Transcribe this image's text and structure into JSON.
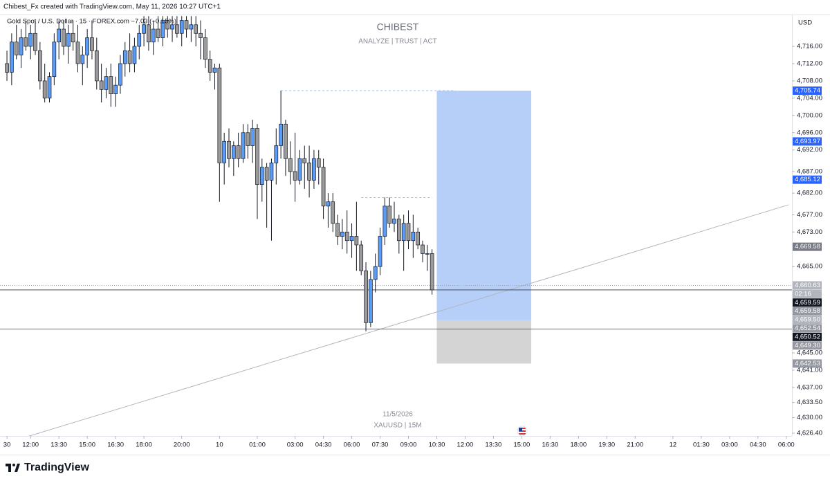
{
  "header": {
    "credit": "Chibest_Fx created with TradingView.com, May 11, 2026 10:27 UTC+1",
    "symbol_line": "Gold Spot / U.S. Dollar · 15 · FOREX.com  −7.03 (−0.15%)"
  },
  "footer": {
    "brand": "TradingView"
  },
  "chart_data": {
    "type": "candlestick",
    "watermark_title": "CHIBEST",
    "watermark_subtitle": "ANALYZE | TRUST | ACT",
    "watermark_date": "11/5/2026",
    "watermark_symbol": "XAUUSD | 15M",
    "y_unit": "USD",
    "grid": false,
    "up_color": "#5b9cf6",
    "down_color": "#9b9b9b",
    "outline_color": "#131722",
    "open": [
      4712,
      4710,
      4717,
      4714,
      4718,
      4716,
      4719,
      4715,
      4708,
      4704,
      4709,
      4717,
      4720,
      4716,
      4719,
      4717,
      4712,
      4714,
      4718,
      4715,
      4708,
      4706,
      4709,
      4705,
      4707,
      4712,
      4715,
      4712,
      4716,
      4719,
      4721,
      4717,
      4720,
      4718,
      4722,
      4720,
      4721,
      4719,
      4722,
      4720,
      4721,
      4719,
      4718,
      4713,
      4710,
      4711,
      4689,
      4694,
      4690,
      4693,
      4690,
      4696,
      4693,
      4697,
      4684,
      4688,
      4685,
      4689,
      4693,
      4698,
      4690,
      4687,
      4685,
      4690,
      4689,
      4685,
      4690,
      4688,
      4679,
      4680,
      4675,
      4672,
      4673,
      4671,
      4672,
      4670,
      4664,
      4652,
      4662,
      4665,
      4672,
      4679,
      4675,
      4676,
      4671,
      4675,
      4671,
      4673,
      4670,
      4668,
      4668
    ],
    "high": [
      4715,
      4719,
      4721,
      4720,
      4722,
      4721,
      4722,
      4717,
      4712,
      4710,
      4719,
      4722,
      4722,
      4721,
      4722,
      4721,
      4716,
      4720,
      4722,
      4718,
      4712,
      4711,
      4712,
      4709,
      4714,
      4717,
      4719,
      4718,
      4721,
      4723,
      4723,
      4722,
      4723,
      4723,
      4723,
      4723,
      4723,
      4723,
      4723,
      4723,
      4723,
      4722,
      4720,
      4715,
      4712,
      4712,
      4696,
      4697,
      4694,
      4696,
      4698,
      4698,
      4699,
      4698,
      4690,
      4689,
      4690,
      4697,
      4705.74,
      4699,
      4694,
      4696,
      4692,
      4693,
      4693,
      4692,
      4692,
      4690,
      4682,
      4682,
      4677,
      4676,
      4678,
      4675,
      4680,
      4671,
      4666,
      4664,
      4668,
      4674,
      4681,
      4681,
      4680,
      4677,
      4677,
      4678,
      4677,
      4674,
      4671,
      4670,
      4669
    ],
    "low": [
      4708,
      4707,
      4713,
      4711,
      4715,
      4713,
      4714,
      4706,
      4703,
      4703,
      4707,
      4713,
      4714,
      4712,
      4715,
      4710,
      4707,
      4711,
      4713,
      4706,
      4703,
      4704,
      4702,
      4702,
      4705,
      4709,
      4710,
      4710,
      4713,
      4716,
      4715,
      4714,
      4717,
      4716,
      4718,
      4717,
      4718,
      4716,
      4718,
      4717,
      4716,
      4713,
      4711,
      4708,
      4706,
      4680,
      4684,
      4688,
      4686,
      4688,
      4689,
      4690,
      4689,
      4676,
      4680,
      4674,
      4671,
      4684,
      4690,
      4686,
      4684,
      4680,
      4684,
      4683,
      4681,
      4683,
      4684,
      4676,
      4674,
      4673,
      4670,
      4669,
      4668,
      4667,
      4664,
      4663,
      4650,
      4651,
      4659,
      4663,
      4670,
      4674,
      4673,
      4668,
      4664,
      4669,
      4667,
      4669,
      4666,
      4664,
      4658.5
    ],
    "close": [
      4710,
      4717,
      4714,
      4718,
      4716,
      4719,
      4715,
      4708,
      4704,
      4709,
      4717,
      4720,
      4716,
      4719,
      4717,
      4712,
      4714,
      4718,
      4715,
      4708,
      4706,
      4709,
      4705,
      4707,
      4712,
      4715,
      4712,
      4716,
      4719,
      4721,
      4717,
      4720,
      4718,
      4722,
      4720,
      4721,
      4719,
      4722,
      4720,
      4721,
      4719,
      4718,
      4713,
      4710,
      4711,
      4689,
      4694,
      4690,
      4693,
      4690,
      4696,
      4693,
      4697,
      4684,
      4688,
      4685,
      4689,
      4693,
      4698,
      4690,
      4687,
      4685,
      4690,
      4689,
      4685,
      4690,
      4688,
      4679,
      4680,
      4675,
      4672,
      4673,
      4671,
      4672,
      4670,
      4664,
      4652,
      4662,
      4665,
      4672,
      4679,
      4675,
      4676,
      4671,
      4675,
      4671,
      4673,
      4670,
      4668,
      4668,
      4659.59
    ],
    "xlim": [
      -0.3,
      166.2
    ],
    "xticks": [
      {
        "value": 0,
        "label": "30"
      },
      {
        "value": 5,
        "label": "12:00"
      },
      {
        "value": 11,
        "label": "13:30"
      },
      {
        "value": 17,
        "label": "15:00"
      },
      {
        "value": 23,
        "label": "16:30"
      },
      {
        "value": 29,
        "label": "18:00"
      },
      {
        "value": 37,
        "label": "20:00"
      },
      {
        "value": 45,
        "label": "10"
      },
      {
        "value": 53,
        "label": "01:00"
      },
      {
        "value": 61,
        "label": "03:00"
      },
      {
        "value": 67,
        "label": "04:30"
      },
      {
        "value": 73,
        "label": "06:00"
      },
      {
        "value": 79,
        "label": "07:30"
      },
      {
        "value": 85,
        "label": "09:00"
      },
      {
        "value": 91,
        "label": "10:30"
      },
      {
        "value": 97,
        "label": "12:00"
      },
      {
        "value": 103,
        "label": "13:30"
      },
      {
        "value": 109,
        "label": "15:00"
      },
      {
        "value": 115,
        "label": "16:30"
      },
      {
        "value": 121,
        "label": "18:00"
      },
      {
        "value": 127,
        "label": "19:30"
      },
      {
        "value": 133,
        "label": "21:00"
      },
      {
        "value": 141,
        "label": "12"
      },
      {
        "value": 147,
        "label": "01:30"
      },
      {
        "value": 153,
        "label": "03:00"
      },
      {
        "value": 159,
        "label": "04:30"
      },
      {
        "value": 165,
        "label": "06:00"
      }
    ],
    "ylim": [
      4625.76,
      4723.21
    ],
    "yticks": [
      {
        "value": 4716,
        "label": "4,716.00"
      },
      {
        "value": 4712,
        "label": "4,712.00"
      },
      {
        "value": 4708,
        "label": "4,708.00"
      },
      {
        "value": 4704,
        "label": "4,704.00"
      },
      {
        "value": 4700,
        "label": "4,700.00"
      },
      {
        "value": 4696,
        "label": "4,696.00"
      },
      {
        "value": 4692,
        "label": "4,692.00"
      },
      {
        "value": 4687,
        "label": "4,687.00"
      },
      {
        "value": 4682,
        "label": "4,682.00"
      },
      {
        "value": 4677,
        "label": "4,677.00"
      },
      {
        "value": 4673,
        "label": "4,673.00"
      },
      {
        "value": 4665,
        "label": "4,665.00"
      },
      {
        "value": 4645,
        "label": "4,645.00"
      },
      {
        "value": 4641,
        "label": "4,641.00"
      },
      {
        "value": 4637,
        "label": "4,637.00"
      },
      {
        "value": 4633.5,
        "label": "4,633.50"
      },
      {
        "value": 4630,
        "label": "4,630.00"
      },
      {
        "value": 4626.4,
        "label": "4,626.40"
      }
    ],
    "price_labels": [
      {
        "value": 4705.74,
        "label": "4,705.74",
        "color": "#2962ff"
      },
      {
        "value": 4693.97,
        "label": "4,693.97",
        "color": "#2962ff"
      },
      {
        "value": 4685.12,
        "label": "4,685.12",
        "color": "#2962ff"
      },
      {
        "value": 4669.58,
        "label": "4,669.58",
        "color": "#787b86"
      },
      {
        "value": 4660.63,
        "label": "4,660.63",
        "color": "#b2b5be",
        "line": "dotted"
      },
      {
        "value": 4659.59,
        "label": "4,659.59",
        "color": "#131722",
        "line": "solid"
      },
      {
        "value": 4659.58,
        "label": "4,659.58",
        "color": "#9598a1"
      },
      {
        "value": 4659.5,
        "label": "4,659.50",
        "color": "#b2b5be"
      },
      {
        "value": 4652.54,
        "label": "4,652.54",
        "color": "#9598a1"
      },
      {
        "value": 4650.52,
        "label": "4,650.52",
        "color": "#131722",
        "line": "solid"
      },
      {
        "value": 4649.3,
        "label": "4,649.30",
        "color": "#9598a1"
      },
      {
        "value": 4642.53,
        "label": "4,642.53",
        "color": "#9598a1"
      }
    ],
    "countdown": "02:16",
    "position": {
      "start": 91,
      "end": 111,
      "entry": 4652.54,
      "target": 4705.74,
      "stop": 4642.53,
      "target_color": "#b5cff8",
      "stop_color": "#d4d4d4"
    },
    "dashed_levels": [
      {
        "start": 58,
        "end": 95,
        "price": 4705.74
      },
      {
        "start": 75,
        "end": 90,
        "price": 4681
      }
    ],
    "trend_line": {
      "x": [
        3.4,
        165.5
      ],
      "y": [
        4625.3,
        4679.3
      ],
      "color": "#b2b5be"
    }
  }
}
